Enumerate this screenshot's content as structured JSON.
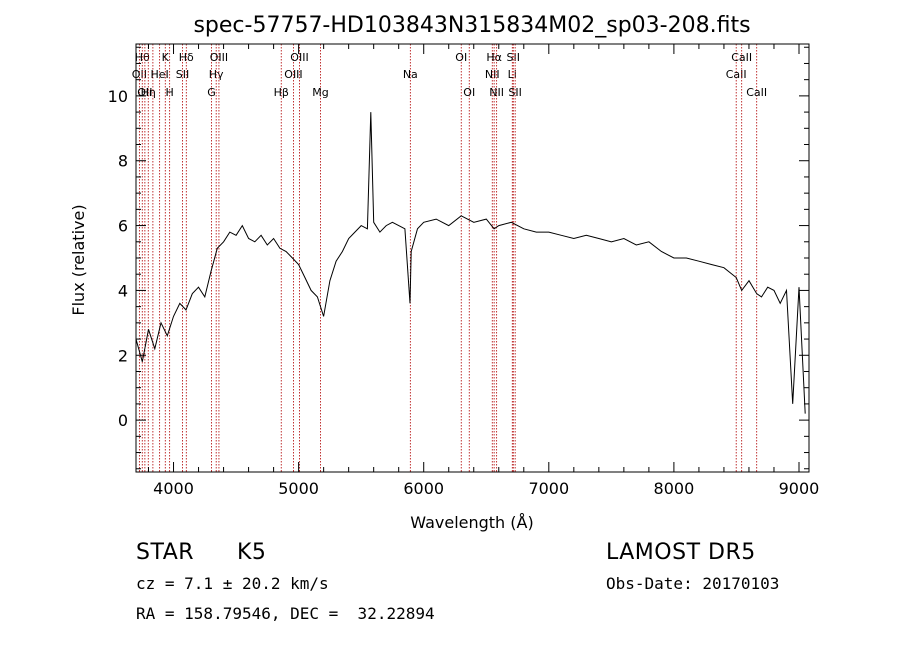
{
  "chart_data": {
    "type": "line",
    "title": "spec-57757-HD103843N315834M02_sp03-208.fits",
    "xlabel": "Wavelength (Å)",
    "ylabel": "Flux (relative)",
    "xlim": [
      3700,
      9080
    ],
    "ylim": [
      -1.6,
      11.6
    ],
    "xticks": [
      4000,
      5000,
      6000,
      7000,
      8000,
      9000
    ],
    "yticks": [
      0,
      2,
      4,
      6,
      8,
      10
    ],
    "grid": false,
    "series": [
      {
        "x": [
          3700,
          3750,
          3800,
          3850,
          3900,
          3950,
          4000,
          4050,
          4100,
          4150,
          4200,
          4250,
          4300,
          4350,
          4400,
          4450,
          4500,
          4550,
          4600,
          4650,
          4700,
          4750,
          4800,
          4850,
          4900,
          4950,
          5000,
          5050,
          5100,
          5150,
          5200,
          5250,
          5300,
          5350,
          5400,
          5450,
          5500,
          5550,
          5577,
          5600,
          5650,
          5700,
          5750,
          5800,
          5850,
          5890,
          5900,
          5950,
          6000,
          6100,
          6200,
          6300,
          6400,
          6500,
          6563,
          6600,
          6700,
          6800,
          6900,
          7000,
          7100,
          7200,
          7300,
          7400,
          7500,
          7600,
          7700,
          7800,
          7900,
          8000,
          8100,
          8200,
          8300,
          8400,
          8498,
          8542,
          8600,
          8662,
          8700,
          8750,
          8800,
          8850,
          8900,
          8950,
          9000,
          9050
        ],
        "y": [
          2.5,
          1.8,
          2.8,
          2.2,
          3.0,
          2.6,
          3.2,
          3.6,
          3.4,
          3.9,
          4.1,
          3.8,
          4.6,
          5.3,
          5.5,
          5.8,
          5.7,
          6.0,
          5.6,
          5.5,
          5.7,
          5.4,
          5.6,
          5.3,
          5.2,
          5.0,
          4.8,
          4.4,
          4.0,
          3.8,
          3.2,
          4.3,
          4.9,
          5.2,
          5.6,
          5.8,
          6.0,
          5.9,
          9.5,
          6.1,
          5.8,
          6.0,
          6.1,
          6.0,
          5.9,
          3.6,
          5.2,
          5.9,
          6.1,
          6.2,
          6.0,
          6.3,
          6.1,
          6.2,
          5.9,
          6.0,
          6.1,
          5.9,
          5.8,
          5.8,
          5.7,
          5.6,
          5.7,
          5.6,
          5.5,
          5.6,
          5.4,
          5.5,
          5.2,
          5.0,
          5.0,
          4.9,
          4.8,
          4.7,
          4.4,
          4.0,
          4.3,
          3.9,
          3.8,
          4.1,
          4.0,
          3.6,
          4.0,
          0.5,
          4.1,
          0.2
        ]
      }
    ],
    "lines": [
      {
        "wl": 3727,
        "label": "OII",
        "row": 1
      },
      {
        "wl": 3750,
        "label": "Hθ",
        "row": 0
      },
      {
        "wl": 3771,
        "label": "OII",
        "row": 2
      },
      {
        "wl": 3798,
        "label": "Hη",
        "row": 2
      },
      {
        "wl": 3835,
        "label": "",
        "row": 0
      },
      {
        "wl": 3889,
        "label": "HeI",
        "row": 1
      },
      {
        "wl": 3934,
        "label": "K",
        "row": 0
      },
      {
        "wl": 3969,
        "label": "H",
        "row": 2
      },
      {
        "wl": 4072,
        "label": "SII",
        "row": 1
      },
      {
        "wl": 4102,
        "label": "Hδ",
        "row": 0
      },
      {
        "wl": 4304,
        "label": "G",
        "row": 2
      },
      {
        "wl": 4341,
        "label": "Hγ",
        "row": 1
      },
      {
        "wl": 4363,
        "label": "OIII",
        "row": 0
      },
      {
        "wl": 4861,
        "label": "Hβ",
        "row": 2
      },
      {
        "wl": 4959,
        "label": "OIII",
        "row": 1
      },
      {
        "wl": 5007,
        "label": "OIII",
        "row": 0
      },
      {
        "wl": 5175,
        "label": "Mg",
        "row": 2
      },
      {
        "wl": 5893,
        "label": "Na",
        "row": 1
      },
      {
        "wl": 6300,
        "label": "OI",
        "row": 0
      },
      {
        "wl": 6364,
        "label": "OI",
        "row": 2
      },
      {
        "wl": 6548,
        "label": "NII",
        "row": 1
      },
      {
        "wl": 6563,
        "label": "Hα",
        "row": 0
      },
      {
        "wl": 6583,
        "label": "NII",
        "row": 2
      },
      {
        "wl": 6708,
        "label": "Li",
        "row": 1
      },
      {
        "wl": 6716,
        "label": "SII",
        "row": 0
      },
      {
        "wl": 6731,
        "label": "SII",
        "row": 2
      },
      {
        "wl": 8498,
        "label": "CaII",
        "row": 1
      },
      {
        "wl": 8542,
        "label": "CaII",
        "row": 0
      },
      {
        "wl": 8662,
        "label": "CaII",
        "row": 2
      }
    ]
  },
  "info": {
    "class": "STAR",
    "subclass": "K5",
    "survey": "LAMOST DR5",
    "cz": "cz = 7.1 ± 20.2 km/s",
    "obs_date": "Obs-Date: 20170103",
    "coords": "RA = 158.79546, DEC =  32.22894"
  },
  "colors": {
    "spectrum": "#000000",
    "line_marker": "#b00000",
    "axes": "#000000"
  }
}
